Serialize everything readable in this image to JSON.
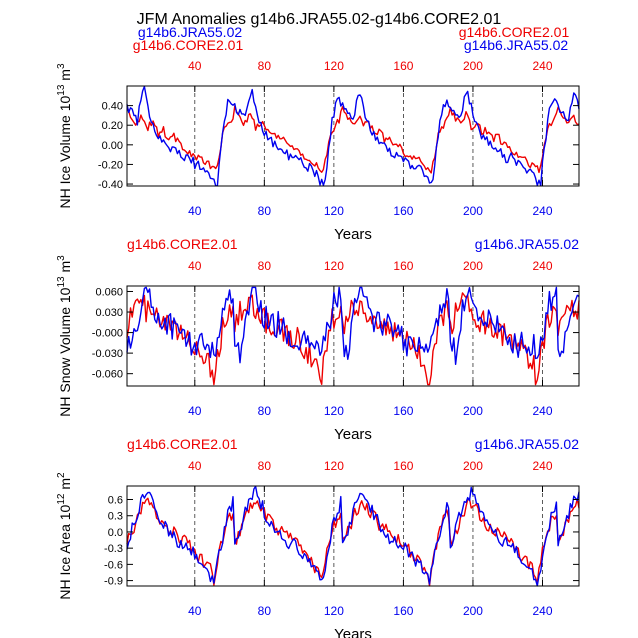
{
  "page": {
    "title": "JFM Anomalies g14b6.JRA55.02-g14b6.CORE2.01",
    "header_left_blue": "g14b6.JRA55.02",
    "header_left_red": "g14b6.CORE2.01",
    "header_right_red": "g14b6.CORE2.01",
    "header_right_blue": "g14b6.JRA55.02"
  },
  "colors": {
    "core": "#ee0000",
    "jra": "#0000ee",
    "axis": "#000000"
  },
  "chart_data": [
    {
      "type": "line",
      "title": "",
      "ylabel_main": "NH Ice Volume 10",
      "ylabel_exp": "13",
      "ylabel_unit": " m",
      "ylabel_unit_exp": "3",
      "xlabel": "Years",
      "legend_left": "",
      "legend_left_color": "",
      "legend_right": "",
      "legend_right_color": "",
      "xlim": [
        1,
        261
      ],
      "ylim": [
        -0.42,
        0.6
      ],
      "yticks": [
        -0.4,
        -0.2,
        0.0,
        0.2,
        0.4
      ],
      "ytick_labels": [
        "-0.40",
        "-0.20",
        "0.00",
        "0.20",
        "0.40"
      ],
      "xticks": [
        40,
        80,
        120,
        160,
        200,
        240
      ],
      "xtick_labels": [
        "40",
        "80",
        "120",
        "160",
        "200",
        "240"
      ],
      "top_xtick_labels": [
        "40",
        "80",
        "120",
        "160",
        "200",
        "240"
      ],
      "cycle_length": 62,
      "series": [
        {
          "name": "g14b6.CORE2.01",
          "color": "#ee0000",
          "shape": [
            [
              0,
              0.38
            ],
            [
              3,
              0.27
            ],
            [
              6,
              0.22
            ],
            [
              9,
              0.3
            ],
            [
              12,
              0.18
            ],
            [
              15,
              0.24
            ],
            [
              18,
              0.12
            ],
            [
              21,
              0.15
            ],
            [
              24,
              0.06
            ],
            [
              27,
              0.1
            ],
            [
              30,
              0.0
            ],
            [
              33,
              -0.02
            ],
            [
              36,
              -0.08
            ],
            [
              39,
              -0.12
            ],
            [
              42,
              -0.14
            ],
            [
              45,
              -0.18
            ],
            [
              48,
              -0.22
            ],
            [
              51,
              -0.25
            ],
            [
              53,
              -0.12
            ],
            [
              55,
              0.1
            ],
            [
              57,
              0.18
            ],
            [
              59,
              0.22
            ],
            [
              61,
              0.3
            ]
          ],
          "noise": 0.04
        },
        {
          "name": "g14b6.JRA55.02",
          "color": "#0000ee",
          "shape": [
            [
              0,
              0.4
            ],
            [
              3,
              0.32
            ],
            [
              6,
              0.25
            ],
            [
              8,
              0.45
            ],
            [
              10,
              0.55
            ],
            [
              12,
              0.38
            ],
            [
              15,
              0.22
            ],
            [
              18,
              0.1
            ],
            [
              21,
              0.05
            ],
            [
              24,
              -0.02
            ],
            [
              27,
              -0.05
            ],
            [
              30,
              -0.1
            ],
            [
              33,
              -0.15
            ],
            [
              36,
              -0.12
            ],
            [
              39,
              -0.2
            ],
            [
              42,
              -0.22
            ],
            [
              45,
              -0.25
            ],
            [
              48,
              -0.32
            ],
            [
              50,
              -0.4
            ],
            [
              52,
              -0.38
            ],
            [
              54,
              -0.05
            ],
            [
              56,
              0.25
            ],
            [
              58,
              0.42
            ],
            [
              60,
              0.45
            ],
            [
              61,
              0.4
            ]
          ],
          "noise": 0.05
        }
      ]
    },
    {
      "type": "line",
      "title": "",
      "ylabel_main": "NH Snow Volume 10",
      "ylabel_exp": "13",
      "ylabel_unit": " m",
      "ylabel_unit_exp": "3",
      "xlabel": "Years",
      "legend_left": "g14b6.CORE2.01",
      "legend_left_color": "#ee0000",
      "legend_right": "g14b6.JRA55.02",
      "legend_right_color": "#0000ee",
      "xlim": [
        1,
        261
      ],
      "ylim": [
        -0.078,
        0.068
      ],
      "yticks": [
        -0.06,
        -0.03,
        0.0,
        0.03,
        0.06
      ],
      "ytick_labels": [
        "-0.060",
        "-0.030",
        "-0.000",
        "0.030",
        "0.060"
      ],
      "xticks": [
        40,
        80,
        120,
        160,
        200,
        240
      ],
      "xtick_labels": [
        "40",
        "80",
        "120",
        "160",
        "200",
        "240"
      ],
      "top_xtick_labels": [
        "40",
        "80",
        "120",
        "160",
        "200",
        "240"
      ],
      "cycle_length": 62,
      "series": [
        {
          "name": "g14b6.CORE2.01",
          "color": "#ee0000",
          "shape": [
            [
              0,
              0.01
            ],
            [
              4,
              0.035
            ],
            [
              8,
              0.045
            ],
            [
              12,
              0.03
            ],
            [
              16,
              0.02
            ],
            [
              20,
              0.015
            ],
            [
              24,
              0.01
            ],
            [
              28,
              0.0
            ],
            [
              32,
              -0.005
            ],
            [
              36,
              -0.01
            ],
            [
              40,
              -0.02
            ],
            [
              44,
              -0.035
            ],
            [
              48,
              -0.05
            ],
            [
              50,
              -0.075
            ],
            [
              52,
              -0.03
            ],
            [
              56,
              0.02
            ],
            [
              60,
              0.035
            ],
            [
              61,
              0.03
            ]
          ],
          "noise": 0.018
        },
        {
          "name": "g14b6.JRA55.02",
          "color": "#0000ee",
          "shape": [
            [
              0,
              -0.01
            ],
            [
              3,
              -0.03
            ],
            [
              6,
              0.02
            ],
            [
              9,
              0.05
            ],
            [
              11,
              0.065
            ],
            [
              14,
              0.04
            ],
            [
              18,
              0.02
            ],
            [
              22,
              0.015
            ],
            [
              26,
              0.01
            ],
            [
              30,
              0.0
            ],
            [
              34,
              -0.01
            ],
            [
              38,
              -0.02
            ],
            [
              42,
              -0.015
            ],
            [
              46,
              -0.02
            ],
            [
              50,
              -0.025
            ],
            [
              54,
              0.01
            ],
            [
              58,
              0.05
            ],
            [
              61,
              0.06
            ]
          ],
          "noise": 0.02
        }
      ]
    },
    {
      "type": "line",
      "title": "",
      "ylabel_main": "NH Ice Area 10",
      "ylabel_exp": "12",
      "ylabel_unit": " m",
      "ylabel_unit_exp": "2",
      "xlabel": "Years",
      "legend_left": "g14b6.CORE2.01",
      "legend_left_color": "#ee0000",
      "legend_right": "g14b6.JRA55.02",
      "legend_right_color": "#0000ee",
      "xlim": [
        1,
        261
      ],
      "ylim": [
        -1.0,
        0.85
      ],
      "yticks": [
        -0.9,
        -0.6,
        -0.3,
        0.0,
        0.3,
        0.6
      ],
      "ytick_labels": [
        "-0.9",
        "-0.6",
        "-0.3",
        "0.0",
        "0.3",
        "0.6"
      ],
      "xticks": [
        40,
        80,
        120,
        160,
        200,
        240
      ],
      "xtick_labels": [
        "40",
        "80",
        "120",
        "160",
        "200",
        "240"
      ],
      "top_xtick_labels": [
        "40",
        "80",
        "120",
        "160",
        "200",
        "240"
      ],
      "cycle_length": 62,
      "series": [
        {
          "name": "g14b6.CORE2.01",
          "color": "#ee0000",
          "shape": [
            [
              0,
              -0.2
            ],
            [
              3,
              0.0
            ],
            [
              6,
              0.25
            ],
            [
              9,
              0.45
            ],
            [
              12,
              0.55
            ],
            [
              15,
              0.4
            ],
            [
              18,
              0.3
            ],
            [
              21,
              0.15
            ],
            [
              24,
              0.05
            ],
            [
              27,
              0.0
            ],
            [
              30,
              -0.1
            ],
            [
              33,
              -0.15
            ],
            [
              36,
              -0.25
            ],
            [
              39,
              -0.35
            ],
            [
              42,
              -0.5
            ],
            [
              45,
              -0.6
            ],
            [
              48,
              -0.7
            ],
            [
              50,
              -0.95
            ],
            [
              52,
              -0.5
            ],
            [
              55,
              -0.1
            ],
            [
              58,
              0.2
            ],
            [
              61,
              0.35
            ]
          ],
          "noise": 0.12
        },
        {
          "name": "g14b6.JRA55.02",
          "color": "#0000ee",
          "shape": [
            [
              0,
              -0.3
            ],
            [
              3,
              0.05
            ],
            [
              6,
              0.35
            ],
            [
              9,
              0.6
            ],
            [
              12,
              0.75
            ],
            [
              15,
              0.55
            ],
            [
              18,
              0.3
            ],
            [
              21,
              0.15
            ],
            [
              24,
              0.0
            ],
            [
              27,
              -0.1
            ],
            [
              30,
              -0.2
            ],
            [
              33,
              -0.2
            ],
            [
              36,
              -0.3
            ],
            [
              39,
              -0.4
            ],
            [
              42,
              -0.55
            ],
            [
              45,
              -0.65
            ],
            [
              48,
              -0.8
            ],
            [
              50,
              -0.98
            ],
            [
              52,
              -0.6
            ],
            [
              55,
              -0.1
            ],
            [
              58,
              0.3
            ],
            [
              61,
              0.55
            ]
          ],
          "noise": 0.12
        }
      ]
    }
  ]
}
